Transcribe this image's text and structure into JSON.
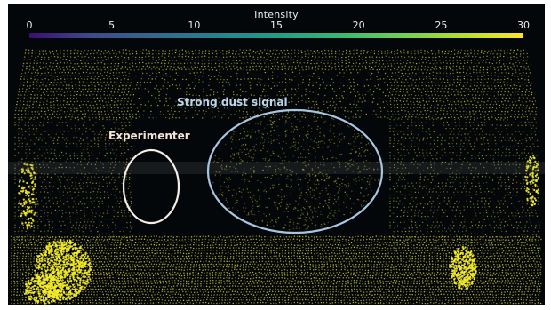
{
  "colorbar": {
    "title": "Intensity",
    "ticks": [
      "0",
      "5",
      "10",
      "15",
      "20",
      "25",
      "30"
    ],
    "range": [
      0,
      30
    ],
    "colors": [
      "#3b0f70",
      "#3e4a89",
      "#31688e",
      "#26828e",
      "#1f9e89",
      "#35b779",
      "#6ece58",
      "#b5de2b",
      "#fde725"
    ]
  },
  "annotations": {
    "dust": {
      "label": "Strong dust signal",
      "color": "#bcd6ec"
    },
    "experimenter": {
      "label": "Experimenter",
      "color": "#f4e4da"
    }
  },
  "scene": {
    "background": "#04070a",
    "point_color": "#d8d23a",
    "hot_point_color": "#f4ec2a"
  }
}
